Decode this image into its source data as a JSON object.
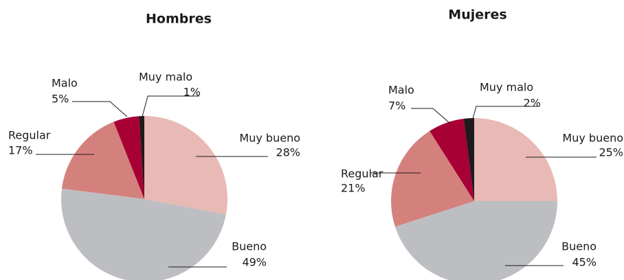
{
  "chart_data": [
    {
      "type": "pie",
      "title": "Hombres",
      "categories": [
        "Muy bueno",
        "Bueno",
        "Regular",
        "Malo",
        "Muy malo"
      ],
      "values": [
        28,
        49,
        17,
        5,
        1
      ],
      "value_labels": [
        "28%",
        "49%",
        "17%",
        "5%",
        "1%"
      ],
      "colors": [
        "#e8b9b5",
        "#bdbec2",
        "#d4817d",
        "#a70034",
        "#1f1a1c"
      ]
    },
    {
      "type": "pie",
      "title": "Mujeres",
      "categories": [
        "Muy bueno",
        "Bueno",
        "Regular",
        "Malo",
        "Muy malo"
      ],
      "values": [
        25,
        45,
        21,
        7,
        2
      ],
      "value_labels": [
        "25%",
        "45%",
        "21%",
        "7%",
        "2%"
      ],
      "colors": [
        "#e8b9b5",
        "#bdbec2",
        "#d4817d",
        "#a70034",
        "#1f1a1c"
      ]
    }
  ]
}
